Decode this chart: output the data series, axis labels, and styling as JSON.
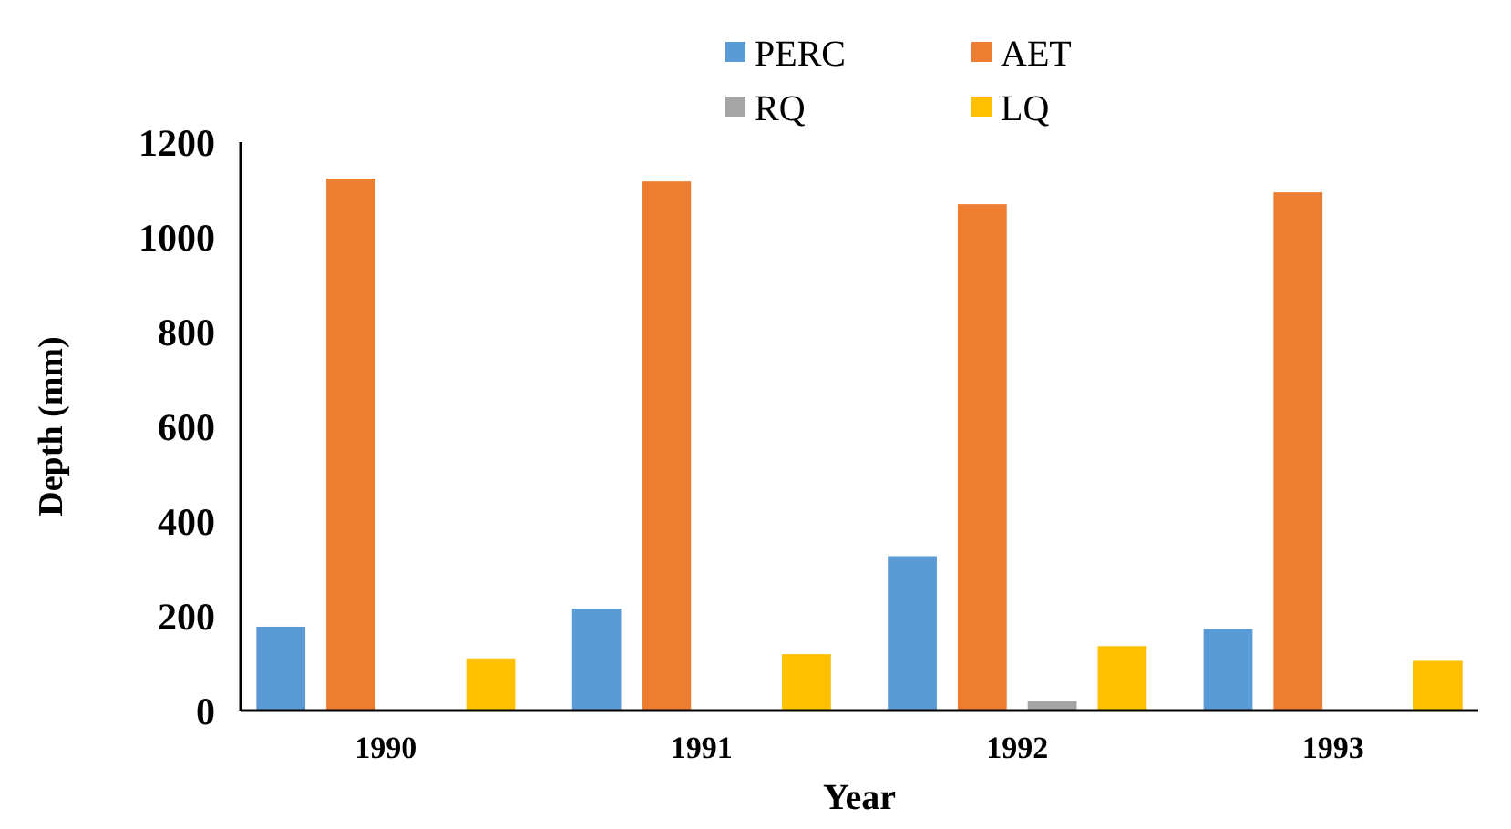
{
  "chart_data": {
    "type": "bar",
    "xlabel": "Year",
    "ylabel": "Depth (mm)",
    "categories": [
      "1990",
      "1991",
      "1992",
      "1993"
    ],
    "series": [
      {
        "name": "PERC",
        "color": "#5b9bd5",
        "values": [
          177,
          215,
          326,
          172
        ]
      },
      {
        "name": "AET",
        "color": "#ed7d31",
        "values": [
          1123,
          1117,
          1069,
          1094
        ]
      },
      {
        "name": "RQ",
        "color": "#a5a5a5",
        "values": [
          0,
          0,
          20,
          0
        ]
      },
      {
        "name": "LQ",
        "color": "#ffc000",
        "values": [
          110,
          119,
          136,
          105
        ]
      }
    ],
    "ylim": [
      0,
      1200
    ],
    "yticks": [
      0,
      200,
      400,
      600,
      800,
      1000,
      1200
    ],
    "grid": false,
    "legend": "top"
  }
}
